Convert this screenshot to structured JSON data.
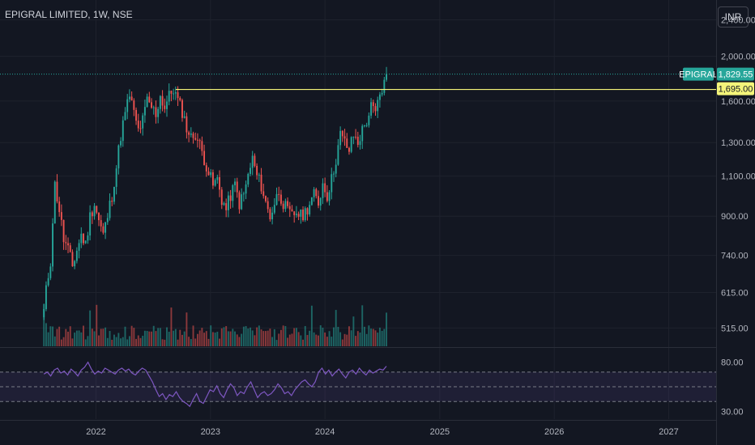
{
  "header": {
    "title": "EPIGRAL LIMITED, 1W, NSE",
    "currency_button": "INR"
  },
  "colors": {
    "background": "#131722",
    "up": "#26a69a",
    "down": "#ef5350",
    "level_line": "#f5f57a",
    "rsi_line": "#7e57c2",
    "grid": "#1e222d"
  },
  "chart_data": [
    {
      "type": "candlestick",
      "symbol": "EPIGRAL",
      "interval": "1W",
      "exchange": "NSE",
      "y_scale": "log",
      "ylim": [
        470,
        2650
      ],
      "y_ticks": [
        515,
        615,
        740,
        900,
        1100,
        1300,
        1600,
        2000,
        2400
      ],
      "y_tick_labels": [
        "515.00",
        "615.00",
        "740.00",
        "900.00",
        "1,100.00",
        "1,300.00",
        "1,600.00",
        "2,000.00",
        "2,400.00"
      ],
      "x_ticks": [
        "2022",
        "2023",
        "2024",
        "2025",
        "2026",
        "2027"
      ],
      "xlim": [
        "2021-03-01",
        "2027-06-01"
      ],
      "price_path": [
        [
          "2021-07-19",
          560
        ],
        [
          "2021-07-26",
          620
        ],
        [
          "2021-08-09",
          720
        ],
        [
          "2021-08-23",
          1050
        ],
        [
          "2021-09-06",
          930
        ],
        [
          "2021-09-20",
          800
        ],
        [
          "2021-10-04",
          760
        ],
        [
          "2021-10-18",
          700
        ],
        [
          "2021-11-01",
          760
        ],
        [
          "2021-11-15",
          820
        ],
        [
          "2021-11-29",
          780
        ],
        [
          "2021-12-13",
          900
        ],
        [
          "2021-12-27",
          960
        ],
        [
          "2022-01-10",
          880
        ],
        [
          "2022-01-24",
          820
        ],
        [
          "2022-02-07",
          900
        ],
        [
          "2022-02-21",
          1000
        ],
        [
          "2022-03-07",
          1150
        ],
        [
          "2022-03-21",
          1350
        ],
        [
          "2022-04-04",
          1500
        ],
        [
          "2022-04-18",
          1650
        ],
        [
          "2022-05-02",
          1500
        ],
        [
          "2022-05-16",
          1380
        ],
        [
          "2022-05-30",
          1450
        ],
        [
          "2022-06-13",
          1600
        ],
        [
          "2022-06-27",
          1550
        ],
        [
          "2022-07-11",
          1500
        ],
        [
          "2022-07-25",
          1640
        ],
        [
          "2022-08-08",
          1550
        ],
        [
          "2022-08-22",
          1640
        ],
        [
          "2022-09-05",
          1700
        ],
        [
          "2022-09-19",
          1600
        ],
        [
          "2022-10-03",
          1520
        ],
        [
          "2022-10-17",
          1400
        ],
        [
          "2022-10-31",
          1330
        ],
        [
          "2022-11-14",
          1360
        ],
        [
          "2022-11-28",
          1280
        ],
        [
          "2022-12-12",
          1200
        ],
        [
          "2022-12-26",
          1120
        ],
        [
          "2023-01-09",
          1050
        ],
        [
          "2023-01-23",
          1080
        ],
        [
          "2023-02-06",
          980
        ],
        [
          "2023-02-20",
          930
        ],
        [
          "2023-03-06",
          1000
        ],
        [
          "2023-03-20",
          1050
        ],
        [
          "2023-04-03",
          960
        ],
        [
          "2023-04-17",
          1000
        ],
        [
          "2023-05-01",
          1100
        ],
        [
          "2023-05-15",
          1200
        ],
        [
          "2023-05-29",
          1100
        ],
        [
          "2023-06-12",
          1050
        ],
        [
          "2023-06-26",
          960
        ],
        [
          "2023-07-10",
          900
        ],
        [
          "2023-07-24",
          960
        ],
        [
          "2023-08-07",
          1020
        ],
        [
          "2023-08-21",
          960
        ],
        [
          "2023-09-04",
          920
        ],
        [
          "2023-09-18",
          900
        ],
        [
          "2023-10-02",
          920
        ],
        [
          "2023-10-16",
          900
        ],
        [
          "2023-10-30",
          920
        ],
        [
          "2023-11-13",
          960
        ],
        [
          "2023-11-27",
          1000
        ],
        [
          "2023-12-11",
          960
        ],
        [
          "2023-12-25",
          1060
        ],
        [
          "2024-01-08",
          1000
        ],
        [
          "2024-01-22",
          1080
        ],
        [
          "2024-02-05",
          1200
        ],
        [
          "2024-02-19",
          1350
        ],
        [
          "2024-03-04",
          1300
        ],
        [
          "2024-03-18",
          1250
        ],
        [
          "2024-04-01",
          1350
        ],
        [
          "2024-04-15",
          1300
        ],
        [
          "2024-04-29",
          1380
        ],
        [
          "2024-05-13",
          1450
        ],
        [
          "2024-05-27",
          1550
        ],
        [
          "2024-06-10",
          1500
        ],
        [
          "2024-06-24",
          1650
        ],
        [
          "2024-07-08",
          1750
        ],
        [
          "2024-07-15",
          1829.55
        ]
      ],
      "horizontal_levels": [
        1829.55,
        1695.0
      ],
      "level_segment": {
        "from": "2022-09-12",
        "price": 1695.0
      },
      "price_labels": [
        {
          "text": "EPIGRAL",
          "price": 1829.55,
          "color": "#26a69a",
          "text_color": "#ffffff"
        },
        {
          "text": "1,829.55",
          "price": 1829.55,
          "color": "#26a69a",
          "text_color": "#ffffff"
        },
        {
          "text": "1,695.00",
          "price": 1695.0,
          "color": "#f5f57a",
          "text_color": "#131722"
        }
      ]
    },
    {
      "type": "line",
      "name": "",
      "ylim": [
        22,
        93
      ],
      "y_ticks": [
        30,
        80
      ],
      "y_tick_labels": [
        "30.00",
        "80.00"
      ],
      "band": [
        40,
        70
      ],
      "middle_line": 55,
      "series": [
        {
          "name": "",
          "values": [
            68,
            70,
            66,
            72,
            74,
            69,
            71,
            67,
            73,
            70,
            66,
            72,
            75,
            80,
            73,
            68,
            71,
            69,
            74,
            72,
            70,
            68,
            72,
            74,
            71,
            73,
            69,
            67,
            71,
            74,
            72,
            66,
            60,
            52,
            45,
            48,
            42,
            47,
            45,
            50,
            44,
            40,
            38,
            35,
            42,
            48,
            40,
            38,
            45,
            52,
            50,
            56,
            48,
            44,
            52,
            58,
            54,
            46,
            50,
            48,
            55,
            60,
            52,
            44,
            48,
            50,
            46,
            48,
            52,
            58,
            54,
            48,
            50,
            46,
            52,
            56,
            60,
            62,
            58,
            55,
            60,
            70,
            74,
            68,
            72,
            66,
            70,
            73,
            68,
            64,
            70,
            72,
            68,
            74,
            70,
            67,
            72,
            69,
            71,
            73,
            72,
            76
          ]
        }
      ],
      "x_start": "2021-07-19",
      "x_end": "2024-07-15"
    }
  ]
}
